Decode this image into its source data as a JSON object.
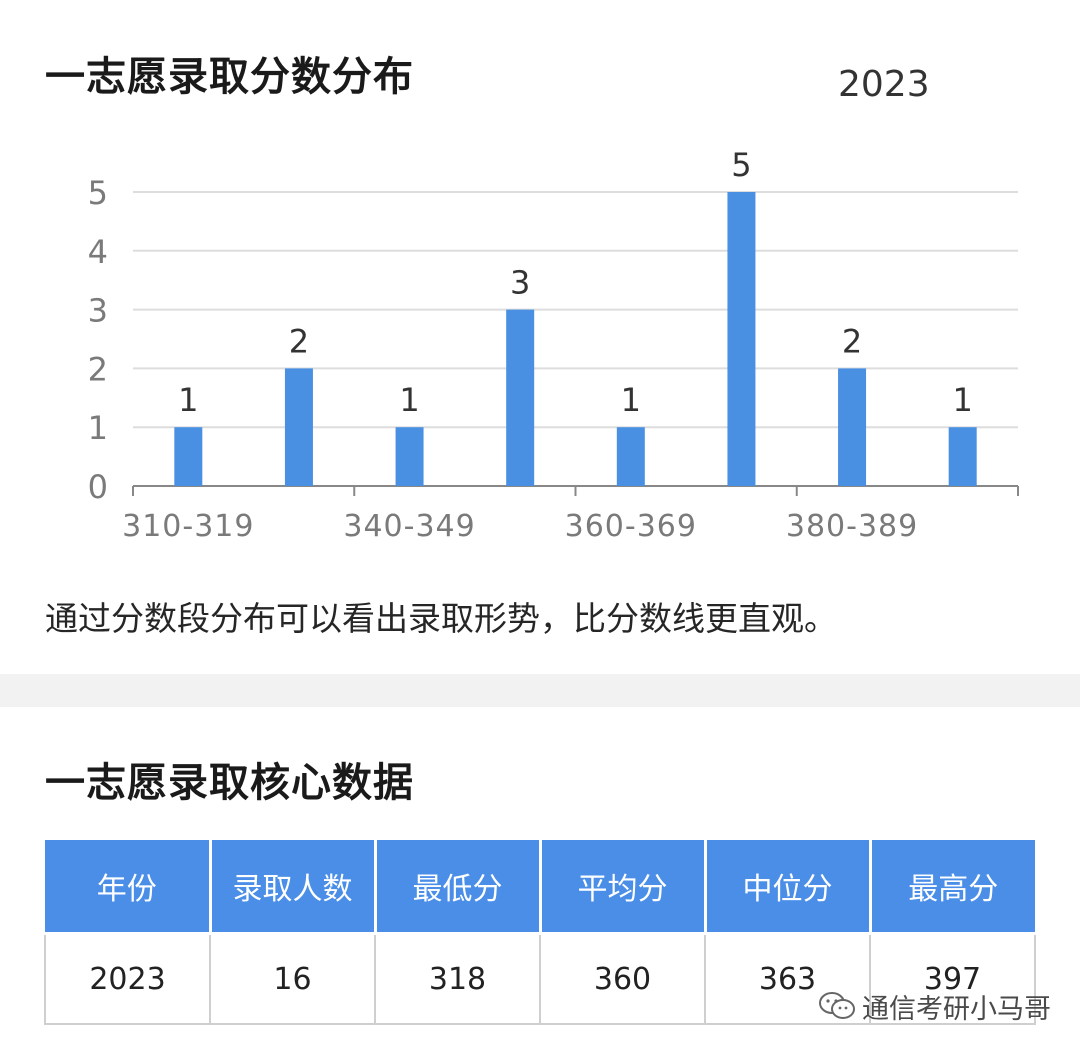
{
  "section1": {
    "title": "一志愿录取分数分布",
    "year": "2023",
    "description": "通过分数段分布可以看出录取形势，比分数线更直观。"
  },
  "chart_data": {
    "type": "bar",
    "categories": [
      "310-319",
      "",
      "340-349",
      "",
      "360-369",
      "",
      "380-389",
      ""
    ],
    "values": [
      1,
      2,
      1,
      3,
      1,
      5,
      2,
      1
    ],
    "x_tick_labels": [
      "310-319",
      "340-349",
      "360-369",
      "380-389"
    ],
    "y_ticks": [
      0,
      1,
      2,
      3,
      4,
      5
    ],
    "ylim": [
      0,
      5
    ],
    "grid": true,
    "bar_color": "#4a90e2",
    "data_labels": true
  },
  "section2": {
    "title": "一志愿录取核心数据",
    "headers": [
      "年份",
      "录取人数",
      "最低分",
      "平均分",
      "中位分",
      "最高分"
    ],
    "rows": [
      [
        "2023",
        "16",
        "318",
        "360",
        "363",
        "397"
      ]
    ]
  },
  "watermark": {
    "text": "通信考研小马哥",
    "icon": "wechat-icon"
  },
  "colors": {
    "accent": "#4a8ee8",
    "band": "#f2f2f2"
  }
}
